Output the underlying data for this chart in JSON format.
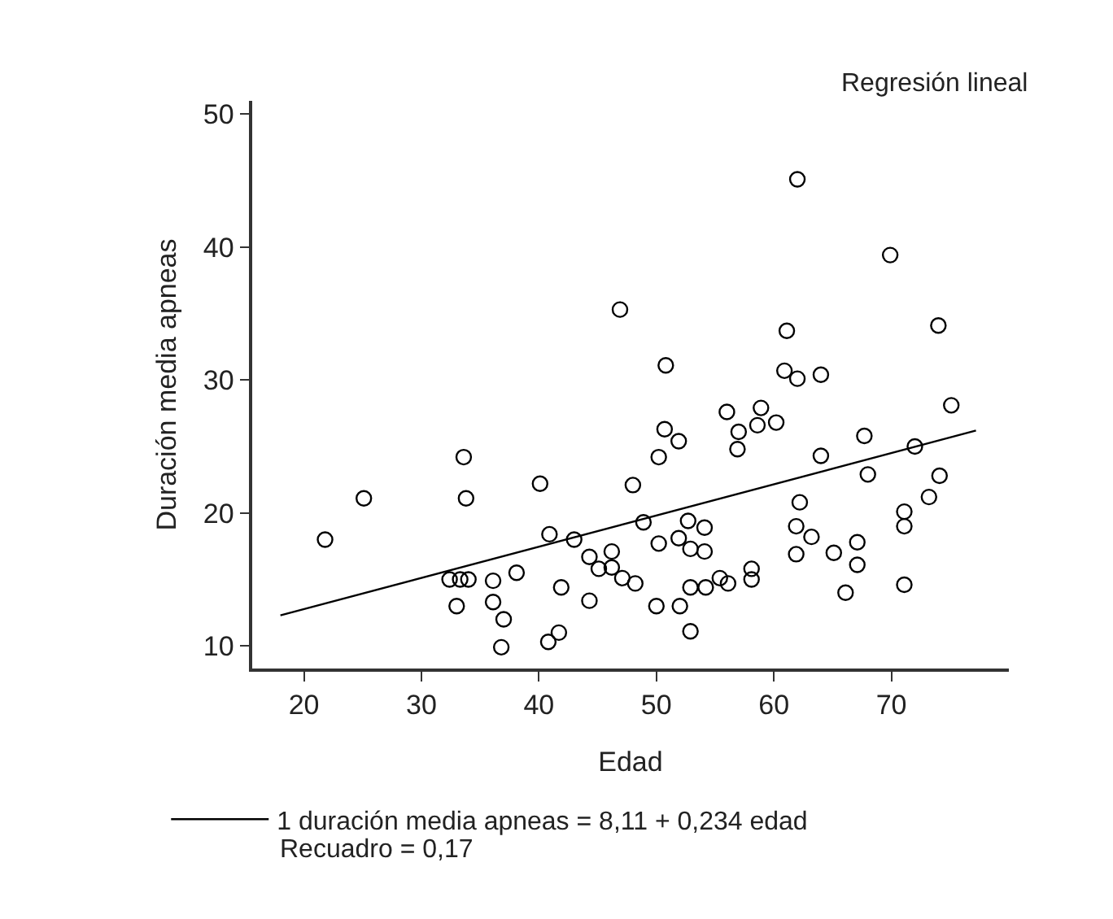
{
  "chart_data": {
    "type": "scatter",
    "xlabel": "Edad",
    "ylabel": "Duración media apneas",
    "annotations": [
      "Regresión lineal",
      "Recuadro = 0,17"
    ],
    "xlim": [
      15.6,
      80
    ],
    "xticks": [
      20,
      30,
      40,
      50,
      60,
      70
    ],
    "ylim": [
      8.3,
      51
    ],
    "yticks": [
      10,
      20,
      30,
      40,
      50
    ],
    "legend": "bottom",
    "marker": "circle",
    "series": [
      {
        "color": "#000000",
        "x": [
          21.8,
          25.1,
          33.6,
          33.8,
          46.9,
          40.1,
          32.4,
          33.3,
          34.0,
          33.0,
          36.1,
          36.1,
          37.0,
          36.8,
          38.1,
          40.9,
          43.0,
          41.9,
          40.8,
          41.7,
          44.3,
          44.3,
          45.1,
          46.2,
          46.2,
          47.1,
          62.0,
          69.9,
          74.0,
          61.1,
          50.8,
          60.9,
          62.0,
          64.0,
          56.0,
          58.9,
          57.0,
          58.6,
          60.2,
          56.9,
          75.1,
          67.7,
          72.0,
          50.7,
          51.9,
          50.2,
          64.0,
          68.0,
          74.1,
          73.2,
          71.1,
          71.1,
          71.1,
          48.0,
          48.9,
          48.2,
          50.2,
          50.0,
          52.0,
          52.9,
          52.7,
          54.1,
          51.9,
          52.9,
          54.1,
          52.9,
          54.2,
          55.4,
          56.1,
          58.1,
          58.1,
          62.2,
          61.9,
          63.2,
          61.9,
          65.1,
          67.1,
          67.1,
          66.1
        ],
        "values": [
          18.0,
          21.1,
          24.2,
          21.1,
          35.3,
          22.2,
          15.0,
          15.0,
          15.0,
          13.0,
          14.9,
          13.3,
          12.0,
          9.9,
          15.5,
          18.4,
          18.0,
          14.4,
          10.3,
          11.0,
          16.7,
          13.4,
          15.8,
          17.1,
          15.9,
          15.1,
          45.1,
          39.4,
          34.1,
          33.7,
          31.1,
          30.7,
          30.1,
          30.4,
          27.6,
          27.9,
          26.1,
          26.6,
          26.8,
          24.8,
          28.1,
          25.8,
          25.0,
          26.3,
          25.4,
          24.2,
          24.3,
          22.9,
          22.8,
          21.2,
          20.1,
          19.0,
          14.6,
          22.1,
          19.3,
          14.7,
          17.7,
          13.0,
          13.0,
          11.1,
          19.4,
          18.9,
          18.1,
          17.3,
          17.1,
          14.4,
          14.4,
          15.1,
          14.7,
          15.8,
          15.0,
          20.8,
          19.0,
          18.2,
          16.9,
          17.0,
          17.8,
          16.1,
          14.0
        ]
      },
      {
        "type": "line",
        "name": "1 duración media apneas = 8,11 + 0,234 edad",
        "color": "#000000",
        "marker": "none",
        "line_style": "solid",
        "x": [
          18.0,
          77.2
        ],
        "values": [
          12.3,
          26.2
        ]
      }
    ]
  }
}
